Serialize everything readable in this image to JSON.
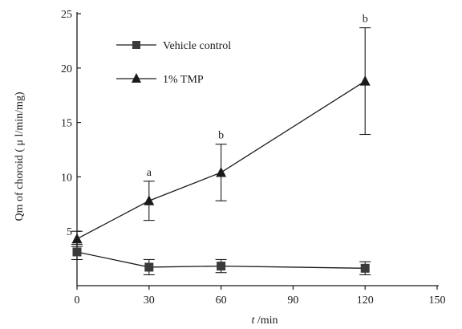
{
  "chart_data": {
    "type": "line",
    "xlabel_italic": "t",
    "xlabel_rest": " /min",
    "ylabel": "Qm of choroid ( μ l/min/mg)",
    "xlim": [
      0,
      150
    ],
    "ylim": [
      0,
      25
    ],
    "xticks": [
      0,
      30,
      60,
      90,
      120,
      150
    ],
    "yticks": [
      5,
      10,
      15,
      20,
      25
    ],
    "grid": false,
    "legend_position": "top-left",
    "series": [
      {
        "name": "Vehicle control",
        "marker": "square",
        "x": [
          0,
          30,
          60,
          120
        ],
        "y": [
          3.1,
          1.7,
          1.8,
          1.6
        ],
        "err": [
          0.7,
          0.7,
          0.6,
          0.6
        ]
      },
      {
        "name": "1% TMP",
        "marker": "triangle",
        "x": [
          0,
          30,
          60,
          120
        ],
        "y": [
          4.3,
          7.8,
          10.4,
          18.8
        ],
        "err": [
          0.7,
          1.8,
          2.6,
          4.9
        ]
      }
    ],
    "annotations": [
      {
        "x": 30,
        "y_above": 9.6,
        "text": "a"
      },
      {
        "x": 60,
        "y_above": 13.0,
        "text": "b"
      },
      {
        "x": 120,
        "y_above": 23.7,
        "text": "b"
      }
    ],
    "colors": {
      "line": "#1a1a1a",
      "marker": "#1a1a1a",
      "square_marker": "#3a3a3a"
    }
  }
}
